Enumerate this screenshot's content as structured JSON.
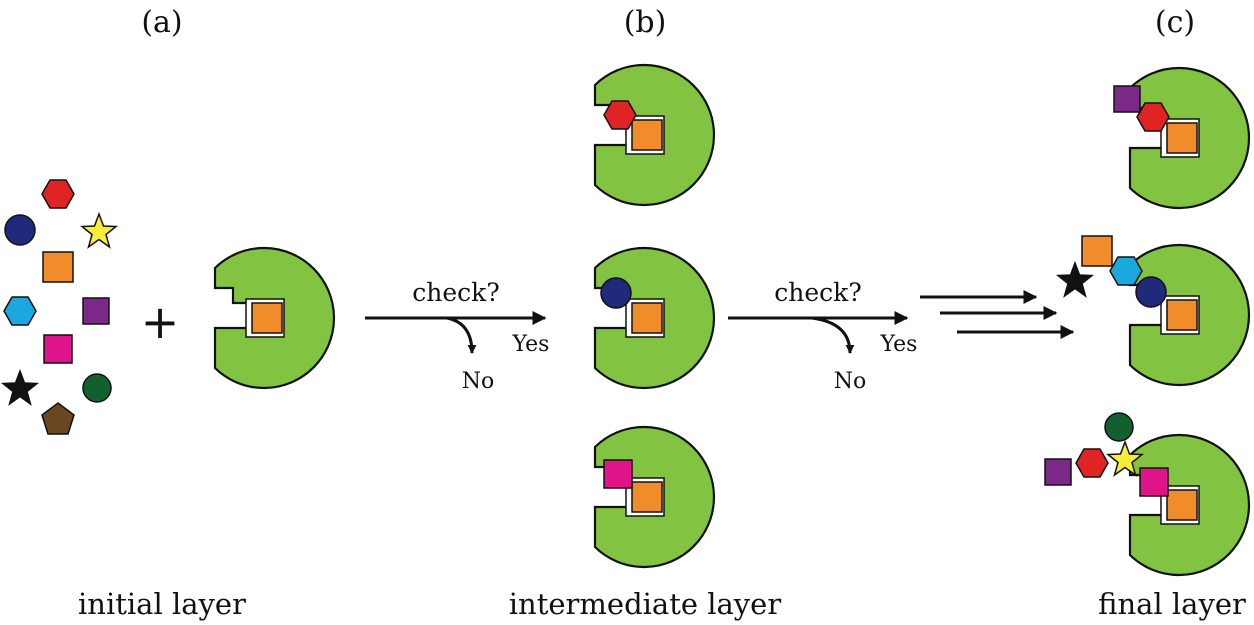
{
  "panels": {
    "a": {
      "label": "(a)",
      "caption": "initial layer"
    },
    "b": {
      "label": "(b)",
      "caption": "intermediate layer"
    },
    "c": {
      "label": "(c)",
      "caption": "final layer"
    }
  },
  "plus_sign": "+",
  "checks": [
    {
      "label": "check?",
      "yes": "Yes",
      "no": "No"
    },
    {
      "label": "check?",
      "yes": "Yes",
      "no": "No"
    }
  ],
  "shape_colors": {
    "disc_green": "#82c341",
    "orange_square": "#f08c2a",
    "red_hexagon": "#e02424",
    "navy_circle": "#1f2a7a",
    "yellow_star": "#f7ee3a",
    "cyan_hexagon": "#1ba8e0",
    "purple_square": "#7a2a86",
    "magenta_square": "#e0148a",
    "black_star": "#111111",
    "green_circle": "#126030",
    "brown_pentagon": "#6b4622"
  }
}
